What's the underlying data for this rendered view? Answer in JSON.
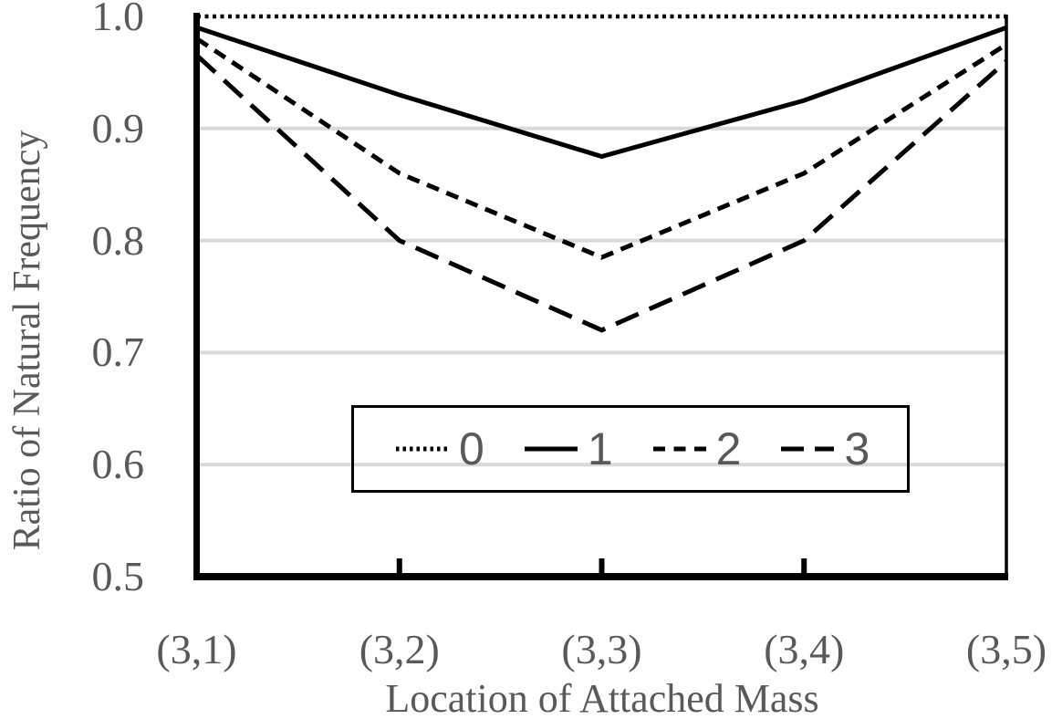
{
  "chart_data": {
    "type": "line",
    "title": "",
    "xlabel": "Location of Attached Mass",
    "ylabel": "Ratio of Natural Frequency",
    "categories": [
      "(3,1)",
      "(3,2)",
      "(3,3)",
      "(3,4)",
      "(3,5)"
    ],
    "yticks": [
      "1.0",
      "0.9",
      "0.8",
      "0.7",
      "0.6",
      "0.5"
    ],
    "ylim": [
      0.5,
      1.0
    ],
    "grid": "horizontal-only",
    "legend_position": "inside-bottom-center",
    "series": [
      {
        "name": "0",
        "style": "dotted",
        "values": [
          1.0,
          1.0,
          1.0,
          1.0,
          1.0
        ]
      },
      {
        "name": "1",
        "style": "solid",
        "values": [
          0.99,
          0.93,
          0.875,
          0.925,
          0.99
        ]
      },
      {
        "name": "2",
        "style": "short-dash",
        "values": [
          0.98,
          0.86,
          0.785,
          0.86,
          0.975
        ]
      },
      {
        "name": "3",
        "style": "long-dash",
        "values": [
          0.965,
          0.8,
          0.72,
          0.8,
          0.96
        ]
      }
    ],
    "colors": {
      "line": "#000000",
      "axis": "#000000",
      "text": "#595959",
      "gridline": "#d9d9d9"
    }
  }
}
